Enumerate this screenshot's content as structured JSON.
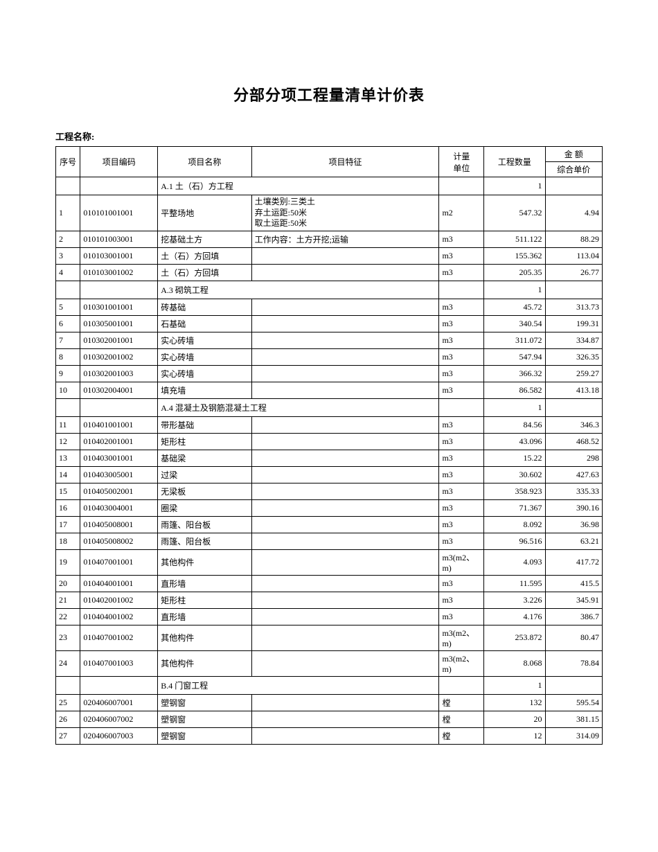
{
  "title": "分部分项工程量清单计价表",
  "project_label": "工程名称:",
  "headers": {
    "seq": "序号",
    "code": "项目编码",
    "name": "项目名称",
    "feature": "项目特征",
    "unit": "计量\n单位",
    "qty": "工程数量",
    "amount": "金    额",
    "unit_price": "综合单价"
  },
  "sections": [
    {
      "name": "A.1 土（石）方工程",
      "qty": "1",
      "rows": [
        {
          "seq": "1",
          "code": "010101001001",
          "name": "平整场地",
          "feat": "土壤类别:三类土\n弃土运距:50米\n取土运距:50米",
          "unit": "m2",
          "qty": "547.32",
          "price": "4.94",
          "tall": true
        },
        {
          "seq": "2",
          "code": "010101003001",
          "name": "挖基础土方",
          "feat": "工作内容：土方开挖;运输",
          "unit": "m3",
          "qty": "511.122",
          "price": "88.29"
        },
        {
          "seq": "3",
          "code": "010103001001",
          "name": "土（石）方回填",
          "feat": "",
          "unit": "m3",
          "qty": "155.362",
          "price": "113.04"
        },
        {
          "seq": "4",
          "code": "010103001002",
          "name": "土（石）方回填",
          "feat": "",
          "unit": "m3",
          "qty": "205.35",
          "price": "26.77"
        }
      ]
    },
    {
      "name": "A.3 砌筑工程",
      "qty": "1",
      "rows": [
        {
          "seq": "5",
          "code": "010301001001",
          "name": "砖基础",
          "feat": "",
          "unit": "m3",
          "qty": "45.72",
          "price": "313.73"
        },
        {
          "seq": "6",
          "code": "010305001001",
          "name": "石基础",
          "feat": "",
          "unit": "m3",
          "qty": "340.54",
          "price": "199.31"
        },
        {
          "seq": "7",
          "code": "010302001001",
          "name": "实心砖墙",
          "feat": "",
          "unit": "m3",
          "qty": "311.072",
          "price": "334.87"
        },
        {
          "seq": "8",
          "code": "010302001002",
          "name": "实心砖墙",
          "feat": "",
          "unit": "m3",
          "qty": "547.94",
          "price": "326.35"
        },
        {
          "seq": "9",
          "code": "010302001003",
          "name": "实心砖墙",
          "feat": "",
          "unit": "m3",
          "qty": "366.32",
          "price": "259.27"
        },
        {
          "seq": "10",
          "code": "010302004001",
          "name": "填充墙",
          "feat": "",
          "unit": "m3",
          "qty": "86.582",
          "price": "413.18"
        }
      ]
    },
    {
      "name": "A.4 混凝土及钢筋混凝土工程",
      "qty": "1",
      "rows": [
        {
          "seq": "11",
          "code": "010401001001",
          "name": "带形基础",
          "feat": "",
          "unit": "m3",
          "qty": "84.56",
          "price": "346.3"
        },
        {
          "seq": "12",
          "code": "010402001001",
          "name": "矩形柱",
          "feat": "",
          "unit": "m3",
          "qty": "43.096",
          "price": "468.52"
        },
        {
          "seq": "13",
          "code": "010403001001",
          "name": "基础梁",
          "feat": "",
          "unit": "m3",
          "qty": "15.22",
          "price": "298"
        },
        {
          "seq": "14",
          "code": "010403005001",
          "name": "过梁",
          "feat": "",
          "unit": "m3",
          "qty": "30.602",
          "price": "427.63"
        },
        {
          "seq": "15",
          "code": "010405002001",
          "name": "无梁板",
          "feat": "",
          "unit": "m3",
          "qty": "358.923",
          "price": "335.33"
        },
        {
          "seq": "16",
          "code": "010403004001",
          "name": "圈梁",
          "feat": "",
          "unit": "m3",
          "qty": "71.367",
          "price": "390.16"
        },
        {
          "seq": "17",
          "code": "010405008001",
          "name": "雨篷、阳台板",
          "feat": "",
          "unit": "m3",
          "qty": "8.092",
          "price": "36.98"
        },
        {
          "seq": "18",
          "code": "010405008002",
          "name": "雨篷、阳台板",
          "feat": "",
          "unit": "m3",
          "qty": "96.516",
          "price": "63.21"
        },
        {
          "seq": "19",
          "code": "010407001001",
          "name": "其他构件",
          "feat": "",
          "unit": "m3(m2、m)",
          "qty": "4.093",
          "price": "417.72",
          "med": true
        },
        {
          "seq": "20",
          "code": "010404001001",
          "name": "直形墙",
          "feat": "",
          "unit": "m3",
          "qty": "11.595",
          "price": "415.5"
        },
        {
          "seq": "21",
          "code": "010402001002",
          "name": "矩形柱",
          "feat": "",
          "unit": "m3",
          "qty": "3.226",
          "price": "345.91"
        },
        {
          "seq": "22",
          "code": "010404001002",
          "name": "直形墙",
          "feat": "",
          "unit": "m3",
          "qty": "4.176",
          "price": "386.7"
        },
        {
          "seq": "23",
          "code": "010407001002",
          "name": "其他构件",
          "feat": "",
          "unit": "m3(m2、m)",
          "qty": "253.872",
          "price": "80.47",
          "med": true
        },
        {
          "seq": "24",
          "code": "010407001003",
          "name": "其他构件",
          "feat": "",
          "unit": "m3(m2、m)",
          "qty": "8.068",
          "price": "78.84",
          "med": true
        }
      ]
    },
    {
      "name": "B.4 门窗工程",
      "qty": "1",
      "rows": [
        {
          "seq": "25",
          "code": "020406007001",
          "name": "塑钢窗",
          "feat": "",
          "unit": "樘",
          "qty": "132",
          "price": "595.54"
        },
        {
          "seq": "26",
          "code": "020406007002",
          "name": "塑钢窗",
          "feat": "",
          "unit": "樘",
          "qty": "20",
          "price": "381.15"
        },
        {
          "seq": "27",
          "code": "020406007003",
          "name": "塑钢窗",
          "feat": "",
          "unit": "樘",
          "qty": "12",
          "price": "314.09"
        }
      ]
    }
  ]
}
